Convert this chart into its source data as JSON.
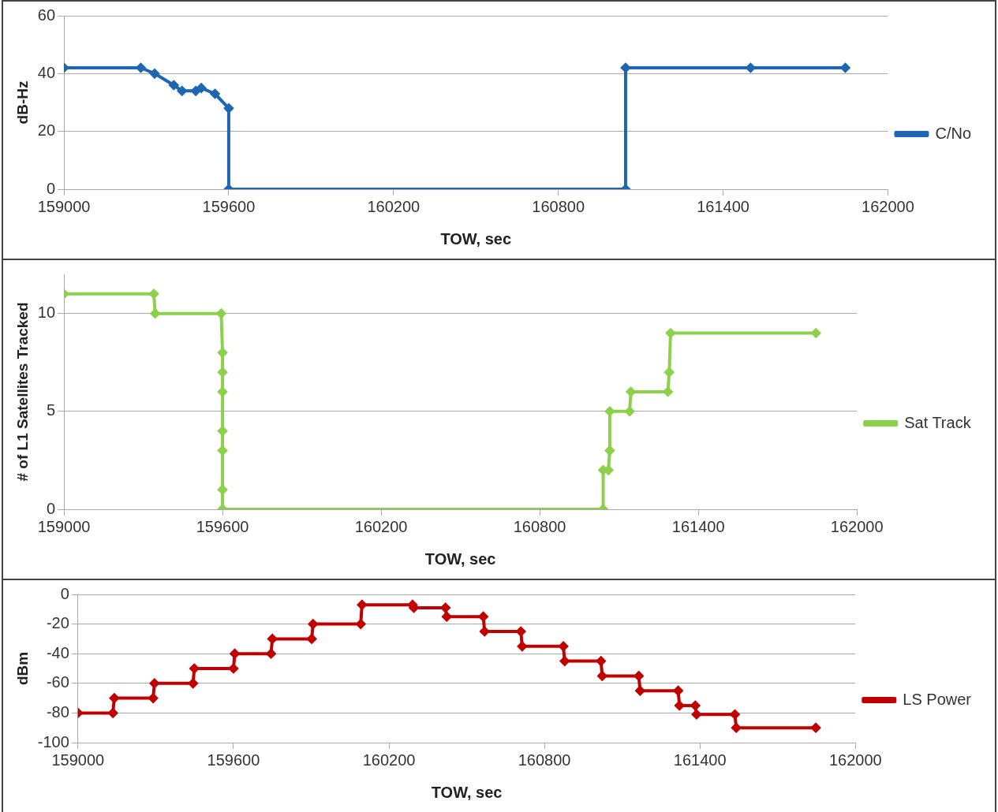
{
  "chart_data": [
    {
      "type": "line",
      "xlabel": "TOW, sec",
      "ylabel": "dB-Hz",
      "xlim": [
        159000,
        162000
      ],
      "xticks": [
        159000,
        159600,
        160200,
        160800,
        161400,
        162000
      ],
      "ylim": [
        0,
        60
      ],
      "yticks": [
        0,
        20,
        40,
        60
      ],
      "grid": "y",
      "legend": "right",
      "marker": "diamond",
      "line_style": "solid",
      "series": [
        {
          "name": "C/No",
          "color": "#1f66b0",
          "x": [
            159000,
            159280,
            159330,
            159400,
            159430,
            159480,
            159500,
            159550,
            159600,
            159600,
            161045,
            161045,
            161500,
            161845
          ],
          "values": [
            42,
            42,
            40,
            36,
            34,
            34,
            35,
            33,
            28,
            0,
            0,
            42,
            42,
            42
          ]
        }
      ]
    },
    {
      "type": "line",
      "xlabel": "TOW, sec",
      "ylabel": "# of L1 Satellites Tracked",
      "xlim": [
        159000,
        162000
      ],
      "xticks": [
        159000,
        159600,
        160200,
        160800,
        161400,
        162000
      ],
      "ylim": [
        0,
        12
      ],
      "yticks": [
        0,
        5,
        10
      ],
      "grid": "y",
      "legend": "right",
      "marker": "diamond",
      "line_style": "solid",
      "series": [
        {
          "name": "Sat Track",
          "color": "#8dd04b",
          "x": [
            159000,
            159340,
            159345,
            159595,
            159600,
            159600,
            159600,
            159600,
            159600,
            159600,
            159600,
            159600,
            161040,
            161040,
            161060,
            161065,
            161065,
            161140,
            161145,
            161285,
            161290,
            161295,
            161845
          ],
          "values": [
            11,
            11,
            10,
            10,
            8,
            7,
            6,
            4,
            3,
            1,
            0,
            0,
            0,
            2,
            2,
            3,
            5,
            5,
            6,
            6,
            7,
            9,
            9
          ]
        }
      ]
    },
    {
      "type": "line",
      "xlabel": "TOW, sec",
      "ylabel": "dBm",
      "xlim": [
        159000,
        162000
      ],
      "xticks": [
        159000,
        159600,
        160200,
        160800,
        161400,
        162000
      ],
      "ylim": [
        -100,
        0
      ],
      "yticks": [
        -100,
        -80,
        -60,
        -40,
        -20,
        0
      ],
      "grid": "y",
      "legend": "right",
      "marker": "diamond",
      "line_style": "solid",
      "series": [
        {
          "name": "LS Power",
          "color": "#c00000",
          "x": [
            159000,
            159135,
            159140,
            159290,
            159295,
            159444,
            159449,
            159600,
            159605,
            159745,
            159750,
            159902,
            159907,
            160091,
            160096,
            160291,
            160296,
            160418,
            160423,
            160564,
            160569,
            160709,
            160714,
            160873,
            160878,
            161018,
            161023,
            161164,
            161169,
            161316,
            161321,
            161382,
            161387,
            161535,
            161540,
            161847
          ],
          "values": [
            -80,
            -80,
            -70,
            -70,
            -60,
            -60,
            -50,
            -50,
            -40,
            -40,
            -30,
            -30,
            -20,
            -20,
            -7,
            -7,
            -9,
            -9,
            -15,
            -15,
            -25,
            -25,
            -35,
            -35,
            -45,
            -45,
            -55,
            -55,
            -65,
            -65,
            -75,
            -75,
            -81,
            -81,
            -90,
            -90
          ]
        }
      ]
    }
  ]
}
